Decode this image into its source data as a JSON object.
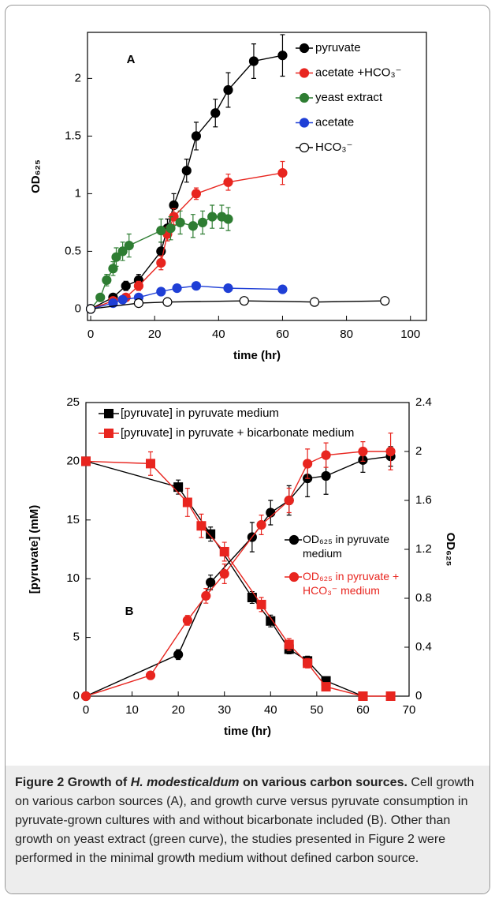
{
  "chart_data": [
    {
      "type": "line",
      "annotation": "A",
      "xlabel": "time (hr)",
      "ylabel": "OD₆₂₅",
      "xlim": [
        -1,
        105
      ],
      "ylim": [
        -0.1,
        2.4
      ],
      "xticks": [
        0,
        20,
        40,
        60,
        80,
        100
      ],
      "yticks": [
        0,
        0.5,
        1,
        1.5,
        2
      ],
      "series": [
        {
          "name": "pyruvate",
          "color": "#000000",
          "marker": "circle",
          "x": [
            0,
            7,
            11,
            15,
            22,
            24,
            26,
            30,
            33,
            39,
            43,
            51,
            60
          ],
          "values": [
            0,
            0.1,
            0.2,
            0.25,
            0.5,
            0.7,
            0.9,
            1.2,
            1.5,
            1.7,
            1.9,
            2.15,
            2.2
          ],
          "errors": [
            0.02,
            0.03,
            0.04,
            0.05,
            0.08,
            0.08,
            0.1,
            0.1,
            0.12,
            0.12,
            0.15,
            0.15,
            0.18
          ]
        },
        {
          "name": "acetate +HCO₃⁻",
          "color": "#e8251f",
          "marker": "circle",
          "x": [
            0,
            7,
            11,
            15,
            22,
            24,
            26,
            33,
            43,
            60
          ],
          "values": [
            0,
            0.07,
            0.1,
            0.2,
            0.4,
            0.65,
            0.8,
            1.0,
            1.1,
            1.18
          ],
          "errors": [
            0.02,
            0.02,
            0.03,
            0.04,
            0.06,
            0.06,
            0.07,
            0.05,
            0.07,
            0.1
          ]
        },
        {
          "name": "yeast extract",
          "color": "#2e7d32",
          "marker": "circle",
          "x": [
            0,
            3,
            5,
            7,
            8,
            10,
            12,
            22,
            25,
            28,
            32,
            35,
            38,
            41,
            43
          ],
          "values": [
            0,
            0.1,
            0.25,
            0.35,
            0.45,
            0.5,
            0.55,
            0.68,
            0.7,
            0.75,
            0.72,
            0.75,
            0.8,
            0.8,
            0.78
          ],
          "errors": [
            0.02,
            0.03,
            0.05,
            0.06,
            0.08,
            0.08,
            0.1,
            0.1,
            0.1,
            0.1,
            0.1,
            0.1,
            0.1,
            0.1,
            0.1
          ]
        },
        {
          "name": "acetate",
          "color": "#1f3fd6",
          "marker": "circle",
          "x": [
            0,
            7,
            10,
            15,
            22,
            27,
            33,
            43,
            60
          ],
          "values": [
            0,
            0.05,
            0.08,
            0.1,
            0.15,
            0.18,
            0.2,
            0.18,
            0.17
          ],
          "errors": [
            0.01,
            0.02,
            0.02,
            0.02,
            0.03,
            0.03,
            0.03,
            0.02,
            0.02
          ]
        },
        {
          "name": "HCO₃⁻",
          "color": "#000000",
          "marker": "open-circle",
          "x": [
            0,
            15,
            24,
            48,
            70,
            92
          ],
          "values": [
            0,
            0.05,
            0.06,
            0.07,
            0.06,
            0.07
          ],
          "errors": [
            0.01,
            0.01,
            0.01,
            0.02,
            0.01,
            0.01
          ]
        }
      ]
    },
    {
      "type": "line",
      "annotation": "B",
      "xlabel": "time (hr)",
      "ylabel": "[pyruvate] (mM)",
      "y2label": "OD₆₂₅",
      "xlim": [
        0,
        70
      ],
      "ylim": [
        0,
        25
      ],
      "y2lim": [
        0,
        2.4
      ],
      "xticks": [
        0,
        10,
        20,
        30,
        40,
        50,
        60,
        70
      ],
      "yticks": [
        0,
        5,
        10,
        15,
        20,
        25
      ],
      "y2ticks": [
        0,
        0.4,
        0.8,
        1.2,
        1.6,
        2,
        2.4
      ],
      "series": [
        {
          "name": "[pyruvate] in pyruvate medium",
          "color": "#000000",
          "marker": "square",
          "x": [
            0,
            20,
            27,
            36,
            40,
            44,
            48,
            52,
            60
          ],
          "values": [
            20,
            17.8,
            13.8,
            8.4,
            6.4,
            4.0,
            3.0,
            1.3,
            0
          ],
          "errors": [
            0.3,
            0.6,
            0.6,
            0.5,
            0.5,
            0.4,
            0.4,
            0.3,
            0.1
          ]
        },
        {
          "name": "[pyruvate] in pyruvate + bicarbonate medium",
          "color": "#e8251f",
          "marker": "square",
          "x": [
            0,
            14,
            22,
            25,
            30,
            38,
            44,
            48,
            52,
            60,
            66
          ],
          "values": [
            20,
            19.8,
            16.5,
            14.5,
            12.3,
            7.8,
            4.4,
            2.8,
            0.8,
            0,
            0
          ],
          "errors": [
            0.3,
            1.0,
            1.2,
            1.0,
            0.8,
            0.6,
            0.5,
            0.4,
            0.3,
            0.1,
            0.1
          ]
        },
        {
          "name": "OD₆₂₅ in pyruvate medium",
          "color": "#000000",
          "marker": "circle",
          "axis": "y2",
          "x": [
            0,
            20,
            27,
            36,
            40,
            44,
            48,
            52,
            60,
            66
          ],
          "values": [
            0,
            0.34,
            0.93,
            1.3,
            1.5,
            1.6,
            1.78,
            1.8,
            1.93,
            1.96
          ],
          "errors": [
            0.01,
            0.04,
            0.06,
            0.12,
            0.1,
            0.12,
            0.15,
            0.15,
            0.1,
            0.08
          ]
        },
        {
          "name": "OD₆₂₅ in pyruvate + HCO₃⁻ medium",
          "color": "#e8251f",
          "marker": "circle",
          "axis": "y2",
          "x": [
            0,
            14,
            22,
            26,
            30,
            38,
            44,
            48,
            52,
            60,
            66
          ],
          "values": [
            0,
            0.17,
            0.62,
            0.82,
            1.0,
            1.4,
            1.6,
            1.9,
            1.97,
            2.0,
            2.0
          ],
          "errors": [
            0.01,
            0.02,
            0.04,
            0.06,
            0.08,
            0.08,
            0.1,
            0.12,
            0.1,
            0.08,
            0.15
          ]
        }
      ]
    }
  ],
  "caption": {
    "label": "Figure 2",
    "title_pre": "Growth of",
    "title_italic": "H. modesticaldum",
    "title_post": "on various carbon sources.",
    "text": "Cell growth on various carbon sources (A), and growth curve versus pyruvate consumption in pyruvate-grown cultures with and without bicarbonate included (B). Other than growth on yeast extract (green curve), the studies presented in Figure 2 were performed in the minimal growth medium without defined carbon source."
  }
}
